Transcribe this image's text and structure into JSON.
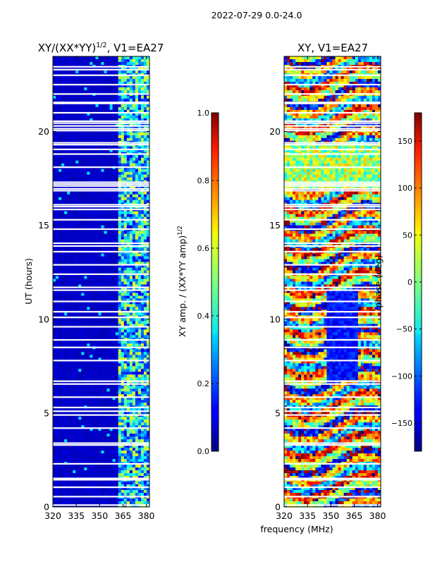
{
  "figure": {
    "suptitle": "2022-07-29 0.0-24.0",
    "xlabel": "frequency (MHz)"
  },
  "chart_data": [
    {
      "type": "heatmap",
      "title_prefix": "XY/(XX*YY)",
      "title_exponent": "1/2",
      "title_suffix": ", V1=EA27",
      "xlabel": "",
      "ylabel": "UT (hours)",
      "xlim": [
        320,
        382
      ],
      "ylim": [
        0,
        24
      ],
      "x_ticks": [
        320,
        335,
        350,
        365,
        380
      ],
      "y_ticks": [
        0,
        5,
        10,
        15,
        20
      ],
      "colormap": "jet",
      "colorbar": {
        "label_prefix": "XY amp. / (XX*YY amp)",
        "label_exponent": "1/2",
        "range": [
          0.0,
          1.0
        ],
        "ticks": [
          "0.0",
          "0.2",
          "0.4",
          "0.6",
          "0.8",
          "1.0"
        ],
        "tick_values": [
          0.0,
          0.2,
          0.4,
          0.6,
          0.8,
          1.0
        ]
      },
      "description_values": {
        "background_level": 0.05,
        "high_band_MHz": [
          362,
          382
        ],
        "high_band_level": 0.45
      }
    },
    {
      "type": "heatmap",
      "title": "XY, V1=EA27",
      "xlabel": "",
      "ylabel": "",
      "xlim": [
        320,
        382
      ],
      "ylim": [
        0,
        24
      ],
      "x_ticks": [
        320,
        335,
        350,
        365,
        380
      ],
      "y_ticks": [
        0,
        5,
        10,
        15,
        20
      ],
      "colormap": "jet",
      "colorbar": {
        "label": "phase (deg)",
        "range": [
          -180,
          180
        ],
        "ticks": [
          "−150",
          "−100",
          "−50",
          "0",
          "50",
          "100",
          "150"
        ],
        "tick_values": [
          -150,
          -100,
          -50,
          0,
          50,
          100,
          150
        ]
      }
    }
  ],
  "flagged_hours": [
    0.1,
    0.55,
    1.05,
    1.45,
    1.52,
    2.3,
    3.3,
    3.4,
    4.2,
    4.9,
    5.1,
    5.3,
    5.85,
    6.55,
    6.7,
    7.8,
    8.5,
    8.9,
    9.6,
    10.1,
    10.4,
    10.95,
    11.55,
    11.7,
    12.4,
    12.9,
    13.6,
    13.9,
    14.05,
    14.8,
    15.3,
    15.85,
    16.0,
    16.1,
    16.85,
    16.95,
    17.1,
    17.2,
    17.3,
    18.1,
    18.8,
    19.05,
    19.3,
    19.4,
    20.05,
    20.15,
    20.3,
    20.45,
    20.55,
    21.0,
    21.5,
    21.55,
    22.0,
    22.5,
    23.0,
    23.3,
    23.45
  ]
}
